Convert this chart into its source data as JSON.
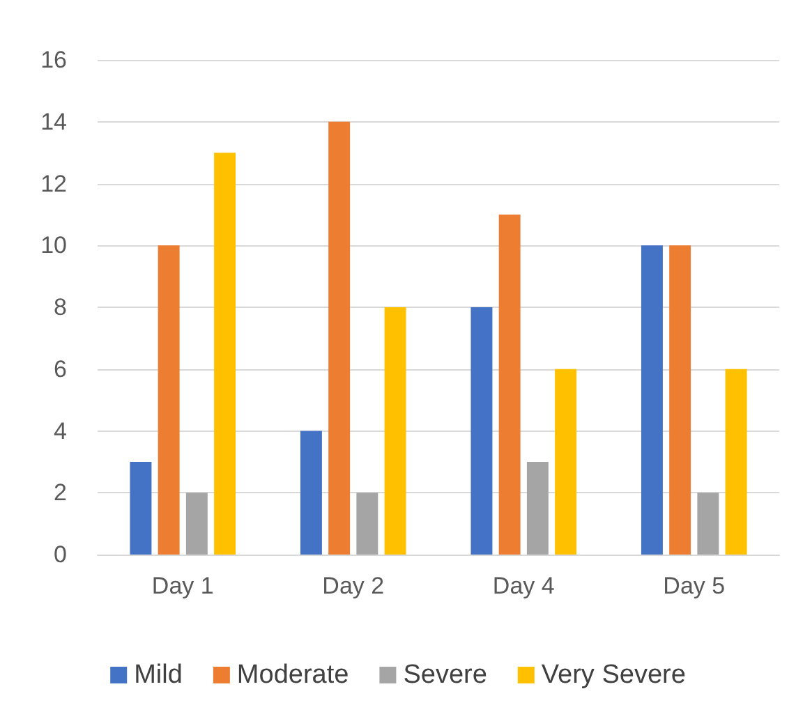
{
  "chart_data": {
    "type": "bar",
    "categories": [
      "Day 1",
      "Day 2",
      "Day 4",
      "Day 5"
    ],
    "series": [
      {
        "name": "Mild",
        "color": "#4472c4",
        "values": [
          3,
          4,
          8,
          10
        ]
      },
      {
        "name": "Moderate",
        "color": "#ed7d31",
        "values": [
          10,
          14,
          11,
          10
        ]
      },
      {
        "name": "Severe",
        "color": "#a5a5a5",
        "values": [
          2,
          2,
          3,
          2
        ]
      },
      {
        "name": "Very Severe",
        "color": "#ffc000",
        "values": [
          13,
          8,
          6,
          6
        ]
      }
    ],
    "ylim": [
      0,
      16
    ],
    "yticks": [
      0,
      2,
      4,
      6,
      8,
      10,
      12,
      14,
      16
    ],
    "grid": "y",
    "legend": "bottom"
  }
}
